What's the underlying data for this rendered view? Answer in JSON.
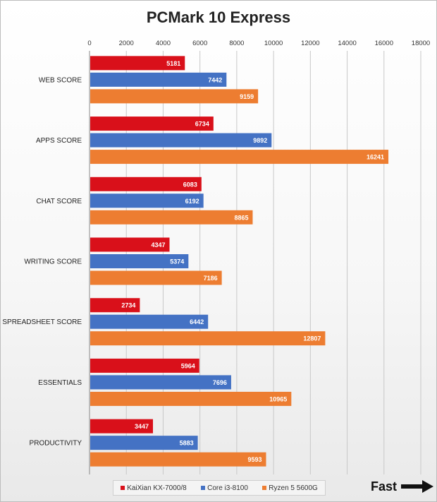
{
  "chart_data": {
    "type": "bar",
    "orientation": "horizontal",
    "title": "PCMark 10 Express",
    "categories": [
      "WEB SCORE",
      "APPS SCORE",
      "CHAT SCORE",
      "WRITING SCORE",
      "SPREADSHEET SCORE",
      "ESSENTIALS",
      "PRODUCTIVITY"
    ],
    "series": [
      {
        "name": "KaiXian KX-7000/8",
        "color": "#d9101a",
        "values": [
          5181,
          6734,
          6083,
          4347,
          2734,
          5964,
          3447
        ]
      },
      {
        "name": "Core i3-8100",
        "color": "#4472c4",
        "values": [
          7442,
          9892,
          6192,
          5374,
          6442,
          7696,
          5883
        ]
      },
      {
        "name": "Ryzen 5 5600G",
        "color": "#ed7d31",
        "values": [
          9159,
          16241,
          8865,
          7186,
          12807,
          10965,
          9593
        ]
      }
    ],
    "xlim": [
      0,
      18000
    ],
    "xticks": [
      0,
      2000,
      4000,
      6000,
      8000,
      10000,
      12000,
      14000,
      16000,
      18000
    ],
    "grid": true,
    "legend_position": "bottom"
  },
  "annotation": {
    "fast_label": "Fast"
  },
  "arrow_icon": "right-arrow-icon"
}
